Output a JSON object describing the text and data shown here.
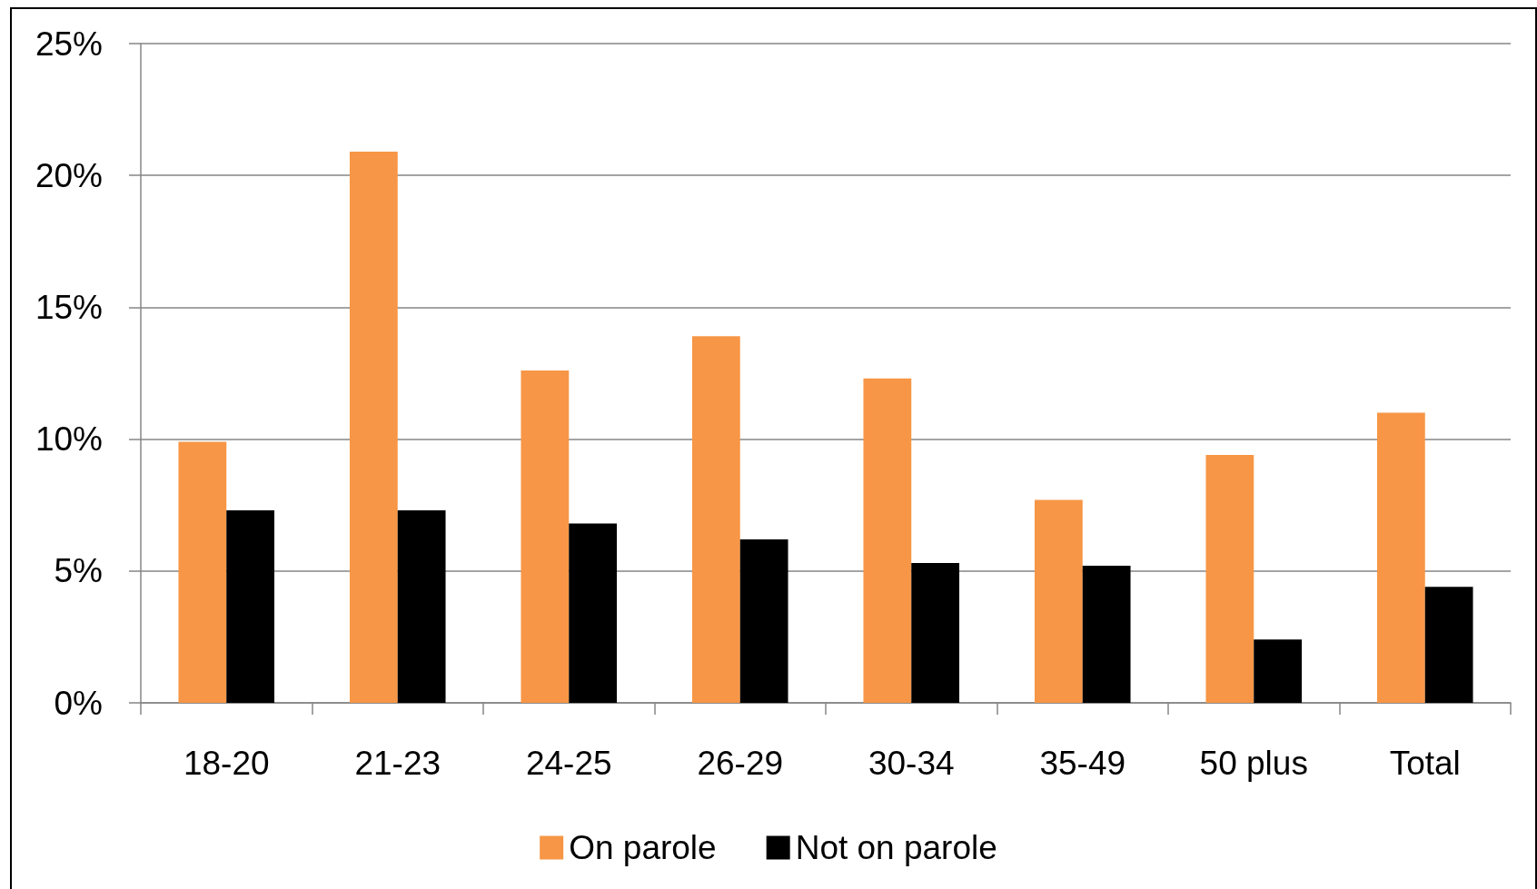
{
  "chart_data": {
    "type": "bar",
    "categories": [
      "18-20",
      "21-23",
      "24-25",
      "26-29",
      "30-34",
      "35-49",
      "50 plus",
      "Total"
    ],
    "series": [
      {
        "name": "On parole",
        "color": "#f79646",
        "values": [
          9.9,
          20.9,
          12.6,
          13.9,
          12.3,
          7.7,
          9.4,
          11.0
        ]
      },
      {
        "name": "Not on parole",
        "color": "#000000",
        "values": [
          7.3,
          7.3,
          6.8,
          6.2,
          5.3,
          5.2,
          2.4,
          4.4
        ]
      }
    ],
    "ylim": [
      0,
      25
    ],
    "yticks": [
      {
        "value": 0,
        "label": "0%"
      },
      {
        "value": 5,
        "label": "5%"
      },
      {
        "value": 10,
        "label": "10%"
      },
      {
        "value": 15,
        "label": "15%"
      },
      {
        "value": 20,
        "label": "20%"
      },
      {
        "value": 25,
        "label": "25%"
      }
    ],
    "grid": "y",
    "legend": "bottom"
  }
}
